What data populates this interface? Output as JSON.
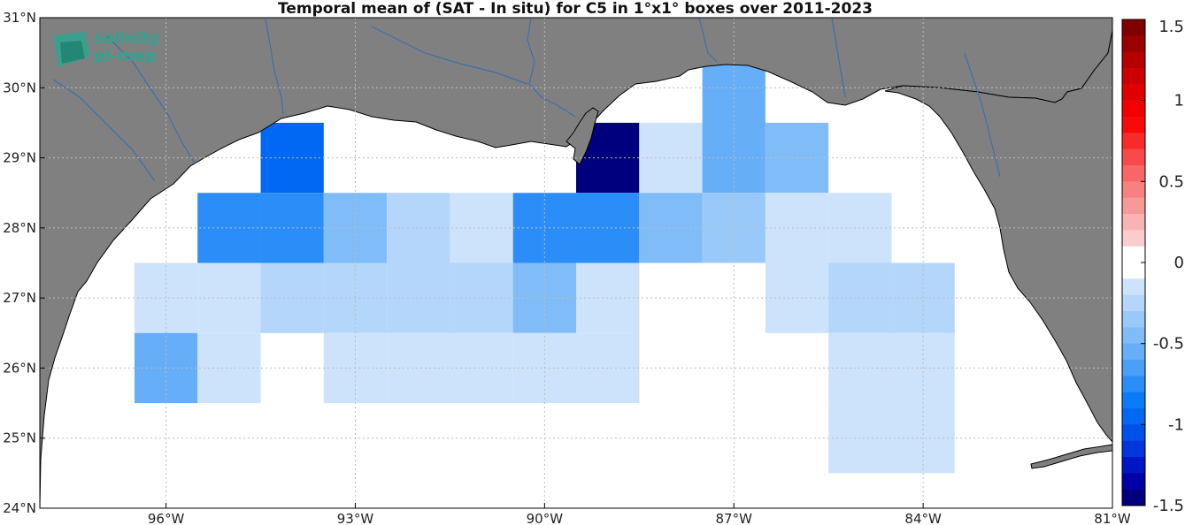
{
  "chart_data": {
    "type": "heatmap",
    "title": "Temporal mean of (SAT - In situ) for C5 in 1°x1° boxes over 2011-2023",
    "xlim": [
      -98,
      -81
    ],
    "ylim": [
      24,
      31
    ],
    "x_ticks": [
      -96,
      -93,
      -90,
      -87,
      -84,
      -81
    ],
    "x_tick_labels": [
      "96°W",
      "93°W",
      "90°W",
      "87°W",
      "84°W",
      "81°W"
    ],
    "y_ticks": [
      24,
      25,
      26,
      27,
      28,
      29,
      30,
      31
    ],
    "y_tick_labels": [
      "24°N",
      "25°N",
      "26°N",
      "27°N",
      "28°N",
      "29°N",
      "30°N",
      "31°N"
    ],
    "grid": true,
    "colorbar": {
      "range": [
        -1.5,
        1.5
      ],
      "ticks": [
        -1.5,
        -1,
        -0.5,
        0,
        0.5,
        1,
        1.5
      ],
      "tick_labels": [
        "-1.5",
        "-1",
        "-0.5",
        "0",
        "0.5",
        "1",
        "1.5"
      ]
    },
    "cells": [
      {
        "lon": -94,
        "lat": 29,
        "value": -0.95
      },
      {
        "lon": -89,
        "lat": 29,
        "value": -1.5
      },
      {
        "lon": -88,
        "lat": 29,
        "value": -0.15
      },
      {
        "lon": -87,
        "lat": 29.5,
        "value": -0.55
      },
      {
        "lon": -86,
        "lat": 29,
        "value": -0.4
      },
      {
        "lon": -95,
        "lat": 28,
        "value": -0.8
      },
      {
        "lon": -94,
        "lat": 28,
        "value": -0.8
      },
      {
        "lon": -93,
        "lat": 28,
        "value": -0.4
      },
      {
        "lon": -92,
        "lat": 28,
        "value": -0.25
      },
      {
        "lon": -91,
        "lat": 28,
        "value": -0.15
      },
      {
        "lon": -90,
        "lat": 28,
        "value": -0.7
      },
      {
        "lon": -89,
        "lat": 28,
        "value": -0.7
      },
      {
        "lon": -88,
        "lat": 28,
        "value": -0.45
      },
      {
        "lon": -87,
        "lat": 28,
        "value": -0.3
      },
      {
        "lon": -86,
        "lat": 28,
        "value": -0.15
      },
      {
        "lon": -85,
        "lat": 28,
        "value": -0.15
      },
      {
        "lon": -96,
        "lat": 27,
        "value": -0.15
      },
      {
        "lon": -95,
        "lat": 27,
        "value": -0.15
      },
      {
        "lon": -94,
        "lat": 27,
        "value": -0.25
      },
      {
        "lon": -93,
        "lat": 27,
        "value": -0.25
      },
      {
        "lon": -92,
        "lat": 27,
        "value": -0.25
      },
      {
        "lon": -91,
        "lat": 27,
        "value": -0.25
      },
      {
        "lon": -90,
        "lat": 27,
        "value": -0.45
      },
      {
        "lon": -89,
        "lat": 27,
        "value": -0.15
      },
      {
        "lon": -86,
        "lat": 27,
        "value": -0.15
      },
      {
        "lon": -85,
        "lat": 27,
        "value": -0.25
      },
      {
        "lon": -84,
        "lat": 27,
        "value": -0.25
      },
      {
        "lon": -96,
        "lat": 26,
        "value": -0.5
      },
      {
        "lon": -95,
        "lat": 26,
        "value": -0.15
      },
      {
        "lon": -93,
        "lat": 26,
        "value": -0.15
      },
      {
        "lon": -92,
        "lat": 26,
        "value": -0.15
      },
      {
        "lon": -91,
        "lat": 26,
        "value": -0.15
      },
      {
        "lon": -90,
        "lat": 26,
        "value": -0.15
      },
      {
        "lon": -89,
        "lat": 26,
        "value": -0.15
      },
      {
        "lon": -85,
        "lat": 26,
        "value": -0.15
      },
      {
        "lon": -84,
        "lat": 26,
        "value": -0.15
      },
      {
        "lon": -85,
        "lat": 25,
        "value": -0.15
      },
      {
        "lon": -84,
        "lat": 25,
        "value": -0.15
      }
    ],
    "colors": {
      "land": "#808080",
      "ocean": "#ffffff",
      "river": "#3a6fb0",
      "grid": "#bdbdbd"
    }
  },
  "logo": {
    "line1": "salinity",
    "line2": "pi-mep"
  }
}
